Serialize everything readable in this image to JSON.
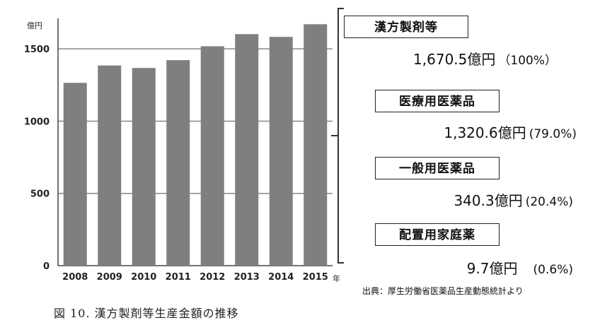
{
  "chart_data": {
    "type": "bar",
    "y_unit": "億円",
    "x_unit": "年",
    "categories": [
      "2008",
      "2009",
      "2010",
      "2011",
      "2012",
      "2013",
      "2014",
      "2015"
    ],
    "values": [
      1265,
      1385,
      1368,
      1422,
      1518,
      1602,
      1583,
      1670.5
    ],
    "ylim": [
      0,
      1700
    ],
    "yticks": [
      "0",
      "500",
      "1000",
      "1500"
    ],
    "grid": true,
    "bar_color": "#7f7f7f"
  },
  "breakdown": [
    {
      "label": "漢方製剤等",
      "amount": "1,670.5億円",
      "pct": "（100%）"
    },
    {
      "label": "医療用医薬品",
      "amount": "1,320.6億円",
      "pct": "(79.0%)"
    },
    {
      "label": "一般用医薬品",
      "amount": "340.3億円",
      "pct": "(20.4%)"
    },
    {
      "label": "配置用家庭薬",
      "amount": "9.7億円",
      "pct": "(0.6%)"
    }
  ],
  "source": "出典：厚生労働省医薬品生産動態統計より",
  "caption": "図 10.  漢方製剤等生産金額の推移"
}
